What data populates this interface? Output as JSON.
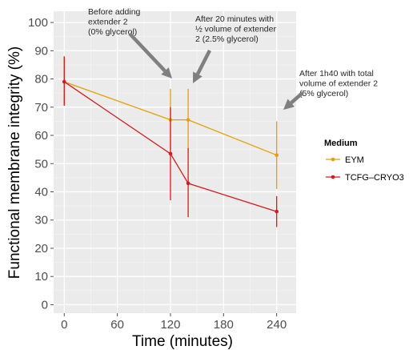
{
  "chart_data": {
    "type": "line",
    "xlabel": "Time (minutes)",
    "ylabel": "Functional membrane integrity (%)",
    "xlim": [
      -12,
      262
    ],
    "ylim": [
      -3,
      104
    ],
    "x_ticks": [
      0,
      60,
      120,
      180,
      240
    ],
    "y_ticks": [
      0,
      10,
      20,
      30,
      40,
      50,
      60,
      70,
      80,
      90,
      100
    ],
    "grid": true,
    "legend": {
      "title": "Medium",
      "placement": "right"
    },
    "series": [
      {
        "name": "EYM",
        "color": "#E69F00",
        "points": [
          {
            "x": 0,
            "y": 79,
            "lo": 71,
            "hi": 88
          },
          {
            "x": 120,
            "y": 65.5,
            "lo": 55,
            "hi": 76.5
          },
          {
            "x": 140,
            "y": 65.5,
            "lo": 54.5,
            "hi": 76.5
          },
          {
            "x": 240,
            "y": 53,
            "lo": 41,
            "hi": 65
          }
        ]
      },
      {
        "name": "TCFG–CRYO3",
        "color": "#D7191C",
        "points": [
          {
            "x": 0,
            "y": 79,
            "lo": 70.5,
            "hi": 88
          },
          {
            "x": 120,
            "y": 53.5,
            "lo": 37,
            "hi": 70
          },
          {
            "x": 140,
            "y": 43,
            "lo": 31,
            "hi": 55.5
          },
          {
            "x": 240,
            "y": 33,
            "lo": 27.5,
            "hi": 38.5
          }
        ]
      }
    ],
    "annotations": [
      {
        "lines": [
          "Before adding",
          "extender 2",
          "(0% glycerol)"
        ],
        "x": 120
      },
      {
        "lines": [
          "After 20 minutes with",
          "½ volume of extender",
          "2 (2.5% glycerol)"
        ],
        "x": 140
      },
      {
        "lines": [
          "After 1h40 with total",
          "volume of extender 2",
          "(5% glycerol)"
        ],
        "x": 240
      }
    ]
  }
}
